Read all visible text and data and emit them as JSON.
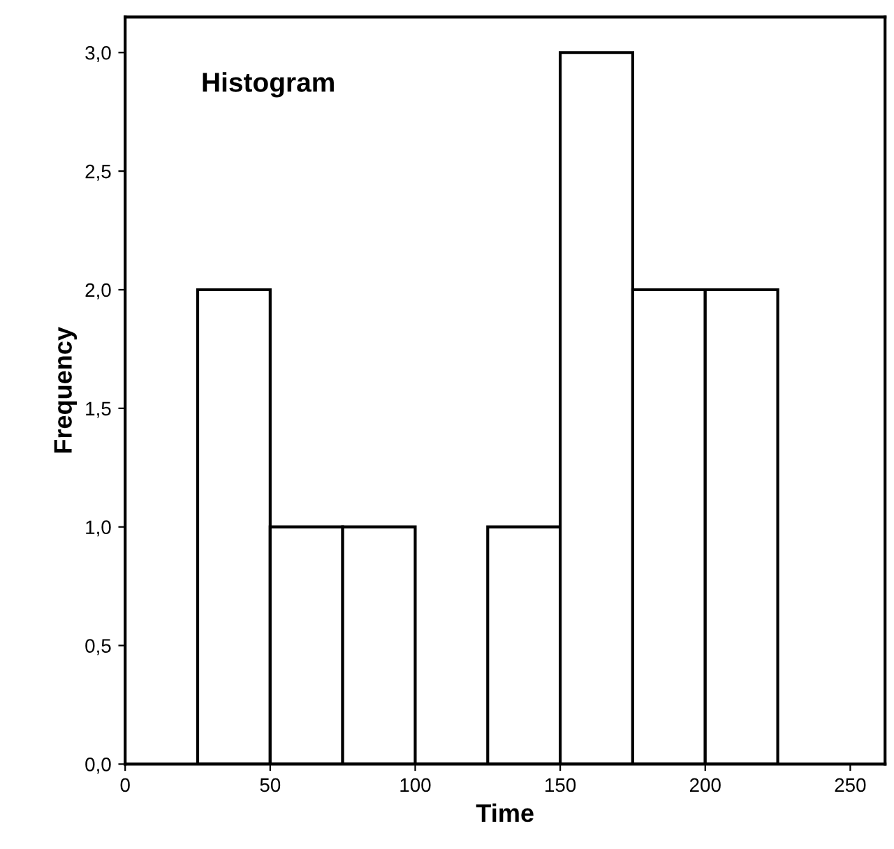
{
  "chart_data": {
    "type": "histogram",
    "title": "Histogram",
    "xlabel": "Time",
    "ylabel": "Frequency",
    "bins": [
      25,
      50,
      75,
      100,
      125,
      150,
      175,
      200,
      225
    ],
    "values": [
      2,
      1,
      1,
      0,
      1,
      3,
      2,
      2
    ],
    "color": "#ffffff",
    "xlim": [
      0,
      262
    ],
    "ylim": [
      0,
      3.15
    ],
    "xticks": [
      0,
      50,
      100,
      150,
      200,
      250
    ],
    "yticks": [
      {
        "value": 0,
        "label": "0,0"
      },
      {
        "value": 0.5,
        "label": "0,5"
      },
      {
        "value": 1,
        "label": "1,0"
      },
      {
        "value": 1.5,
        "label": "1,5"
      },
      {
        "value": 2,
        "label": "2,0"
      },
      {
        "value": 2.5,
        "label": "2,5"
      },
      {
        "value": 3,
        "label": "3,0"
      }
    ],
    "grid": false
  }
}
